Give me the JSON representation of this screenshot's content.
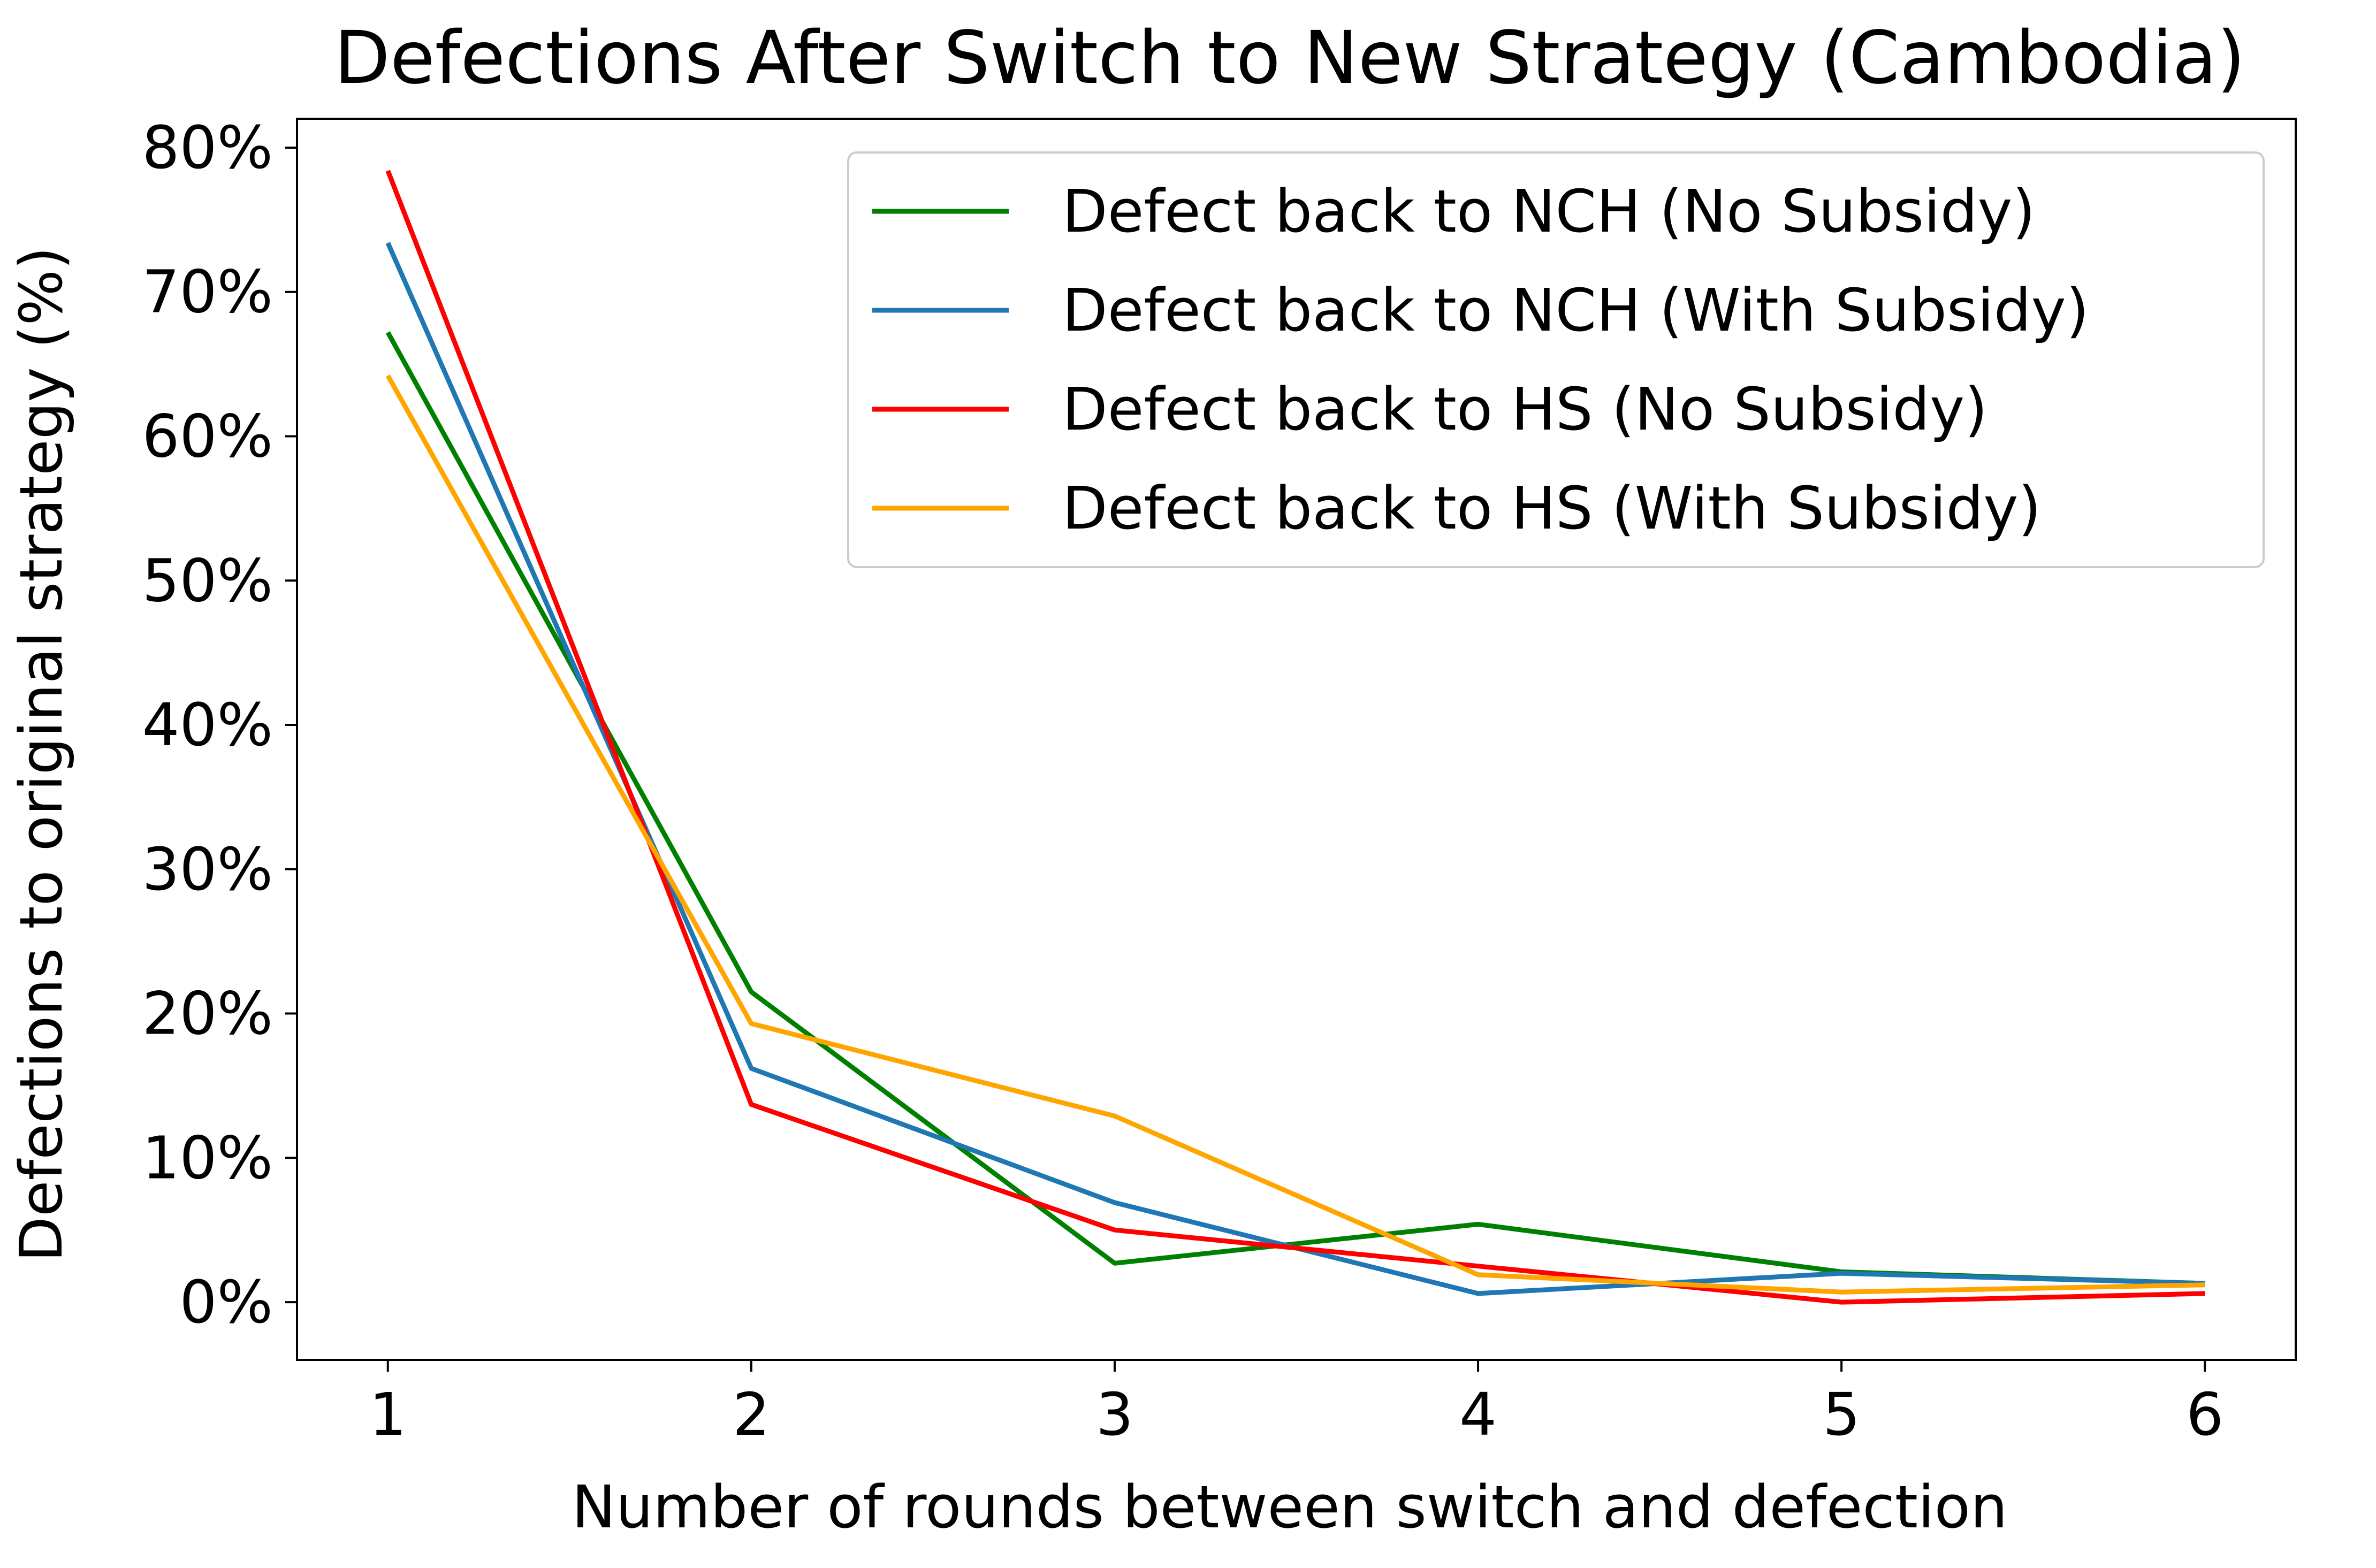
{
  "chart_data": {
    "type": "line",
    "title": "Defections After Switch to New Strategy (Cambodia)",
    "xlabel": "Number of rounds between switch and defection",
    "ylabel": "Defections to original strategy (%)",
    "x": [
      1,
      2,
      3,
      4,
      5,
      6
    ],
    "xlim": [
      0.75,
      6.25
    ],
    "ylim": [
      -4,
      82
    ],
    "x_ticks": [
      1,
      2,
      3,
      4,
      5,
      6
    ],
    "y_ticks": [
      0,
      10,
      20,
      30,
      40,
      50,
      60,
      70,
      80
    ],
    "y_tick_suffix": "%",
    "grid": false,
    "legend_position": "top-right",
    "series": [
      {
        "name": "Defect back to NCH (No Subsidy)",
        "color": "#008000",
        "values": [
          67.2,
          21.5,
          2.7,
          5.4,
          2.1,
          1.3
        ]
      },
      {
        "name": "Defect back to NCH (With Subsidy)",
        "color": "#1f77b4",
        "values": [
          73.4,
          16.2,
          6.9,
          0.6,
          2.0,
          1.3
        ]
      },
      {
        "name": "Defect back to HS (No Subsidy)",
        "color": "#ff0000",
        "values": [
          78.4,
          13.7,
          5.0,
          2.5,
          0.0,
          0.6
        ]
      },
      {
        "name": "Defect back to HS (With Subsidy)",
        "color": "#ffa500",
        "values": [
          64.2,
          19.3,
          12.9,
          1.9,
          0.7,
          1.2
        ]
      }
    ]
  }
}
